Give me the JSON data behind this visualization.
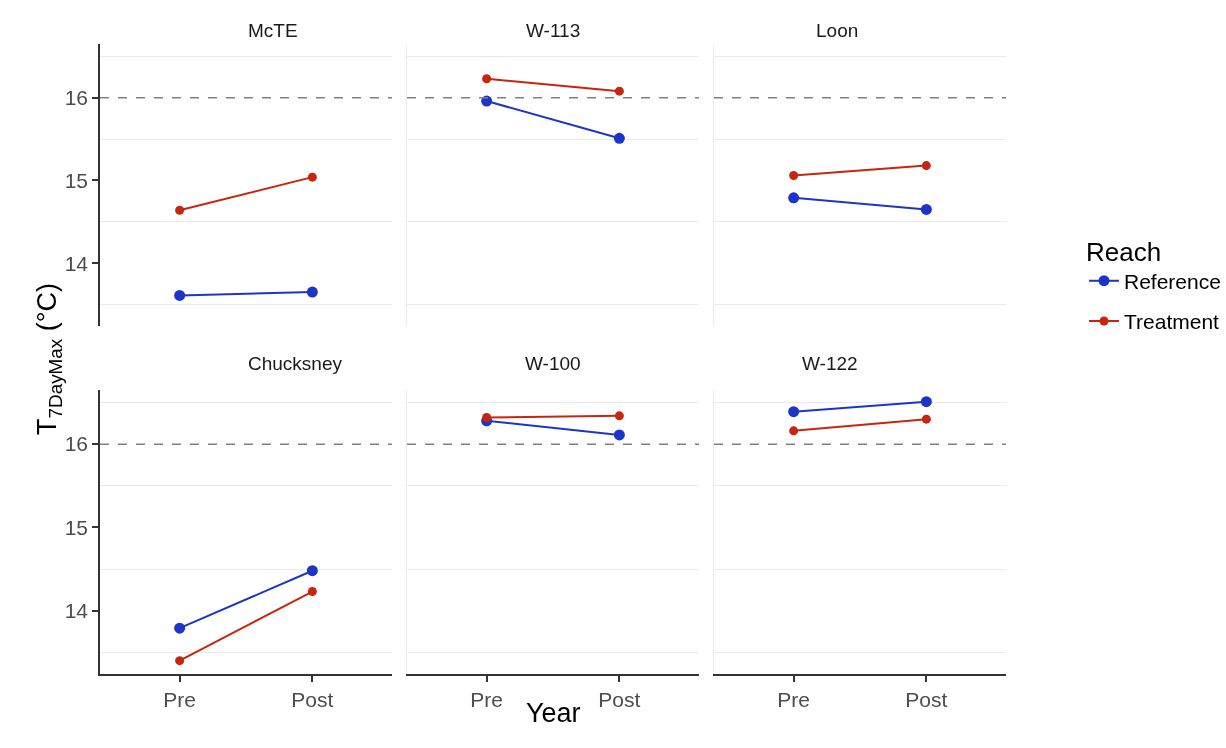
{
  "chart_data": [
    {
      "type": "line",
      "title": "McTE",
      "ylabel": "T$_{7DayMax}$ (°C)",
      "legend_title": "Reach",
      "legend": "right",
      "categories": [
        "Pre",
        "Post"
      ],
      "ylim": [
        13.24,
        16.65
      ],
      "yticks": [
        14,
        15,
        16
      ],
      "grid": "y",
      "marker": "circle",
      "tick_labels": "y",
      "ref_lines": [
        {
          "axis": "y",
          "value": 16,
          "color": "#808080",
          "line_style": "dashed"
        }
      ],
      "series": [
        {
          "name": "Reference",
          "color": "#1c35c8",
          "values": [
            13.61,
            13.65
          ]
        },
        {
          "name": "Treatment",
          "color": "#c8250f",
          "values": [
            14.64,
            15.04
          ]
        }
      ]
    },
    {
      "type": "line",
      "title": "W-113",
      "categories": [
        "Pre",
        "Post"
      ],
      "ylim": [
        13.24,
        16.65
      ],
      "yticks": [
        14,
        15,
        16
      ],
      "grid": "y",
      "marker": "circle",
      "tick_labels": false,
      "ref_lines": [
        {
          "axis": "y",
          "value": 16,
          "color": "#808080",
          "line_style": "dashed"
        }
      ],
      "series": [
        {
          "name": "Reference",
          "color": "#1c35c8",
          "values": [
            15.96,
            15.51
          ]
        },
        {
          "name": "Treatment",
          "color": "#c8250f",
          "values": [
            16.23,
            16.08
          ]
        }
      ]
    },
    {
      "type": "line",
      "title": "Loon",
      "categories": [
        "Pre",
        "Post"
      ],
      "ylim": [
        13.24,
        16.65
      ],
      "yticks": [
        14,
        15,
        16
      ],
      "grid": "y",
      "marker": "circle",
      "tick_labels": false,
      "ref_lines": [
        {
          "axis": "y",
          "value": 16,
          "color": "#808080",
          "line_style": "dashed"
        }
      ],
      "series": [
        {
          "name": "Reference",
          "color": "#1c35c8",
          "values": [
            14.79,
            14.65
          ]
        },
        {
          "name": "Treatment",
          "color": "#c8250f",
          "values": [
            15.06,
            15.18
          ]
        }
      ]
    },
    {
      "type": "line",
      "title": "Chucksney",
      "categories": [
        "Pre",
        "Post"
      ],
      "ylim": [
        13.24,
        16.65
      ],
      "yticks": [
        14,
        15,
        16
      ],
      "grid": "y",
      "marker": "circle",
      "ref_lines": [
        {
          "axis": "y",
          "value": 16,
          "color": "#808080",
          "line_style": "dashed"
        }
      ],
      "series": [
        {
          "name": "Reference",
          "color": "#1c35c8",
          "values": [
            13.79,
            14.48
          ]
        },
        {
          "name": "Treatment",
          "color": "#c8250f",
          "values": [
            13.4,
            14.23
          ]
        }
      ]
    },
    {
      "type": "line",
      "title": "W-100",
      "xlabel": "Year",
      "categories": [
        "Pre",
        "Post"
      ],
      "ylim": [
        13.24,
        16.65
      ],
      "yticks": [
        14,
        15,
        16
      ],
      "grid": "y",
      "marker": "circle",
      "tick_labels": "x",
      "ref_lines": [
        {
          "axis": "y",
          "value": 16,
          "color": "#808080",
          "line_style": "dashed"
        }
      ],
      "series": [
        {
          "name": "Reference",
          "color": "#1c35c8",
          "values": [
            16.28,
            16.11
          ]
        },
        {
          "name": "Treatment",
          "color": "#c8250f",
          "values": [
            16.32,
            16.34
          ]
        }
      ]
    },
    {
      "type": "line",
      "title": "W-122",
      "categories": [
        "Pre",
        "Post"
      ],
      "ylim": [
        13.24,
        16.65
      ],
      "yticks": [
        14,
        15,
        16
      ],
      "grid": "y",
      "marker": "circle",
      "tick_labels": "x",
      "ref_lines": [
        {
          "axis": "y",
          "value": 16,
          "color": "#808080",
          "line_style": "dashed"
        }
      ],
      "series": [
        {
          "name": "Reference",
          "color": "#1c35c8",
          "values": [
            16.39,
            16.51
          ]
        },
        {
          "name": "Treatment",
          "color": "#c8250f",
          "values": [
            16.16,
            16.3
          ]
        }
      ]
    }
  ]
}
